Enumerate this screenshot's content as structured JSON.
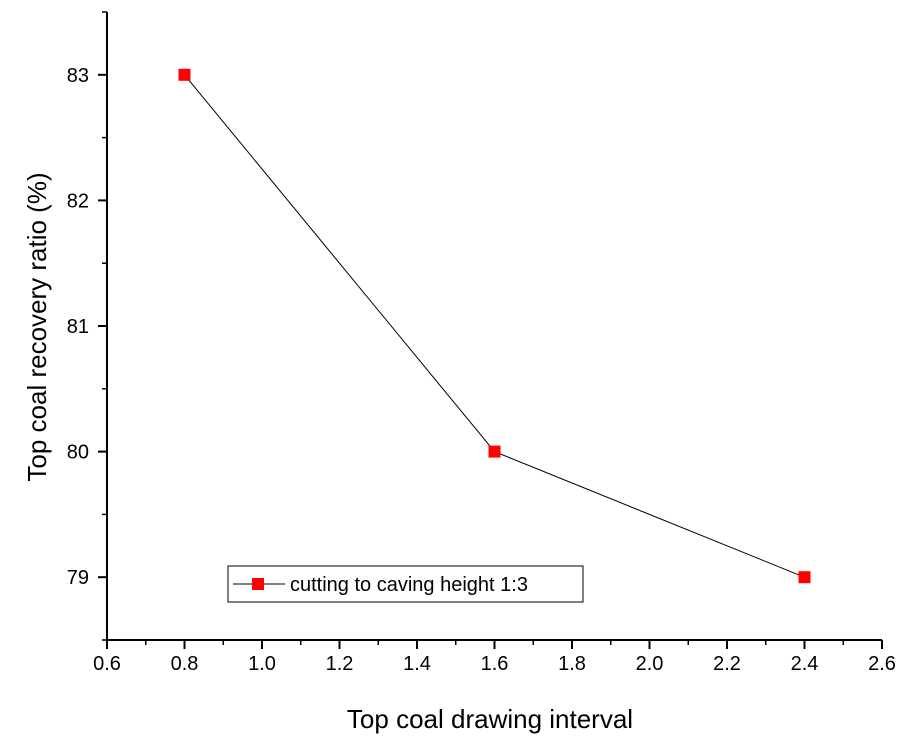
{
  "chart_data": {
    "type": "line",
    "xlabel": "Top coal drawing interval",
    "ylabel": "Top coal recovery ratio (%)",
    "xlim": [
      0.6,
      2.6
    ],
    "ylim": [
      78.5,
      83.5
    ],
    "x_ticks": [
      "0.6",
      "0.8",
      "1.0",
      "1.2",
      "1.4",
      "1.6",
      "1.8",
      "2.0",
      "2.2",
      "2.4",
      "2.6"
    ],
    "y_ticks": [
      "79",
      "80",
      "81",
      "82",
      "83"
    ],
    "grid": false,
    "legend_position": "bottom-left",
    "series": [
      {
        "name": "cutting to caving height 1:3",
        "x": [
          0.8,
          1.6,
          2.4
        ],
        "y": [
          83,
          80,
          79
        ],
        "marker": "square",
        "marker_color": "#ff0000",
        "line_color": "#000000"
      }
    ]
  }
}
